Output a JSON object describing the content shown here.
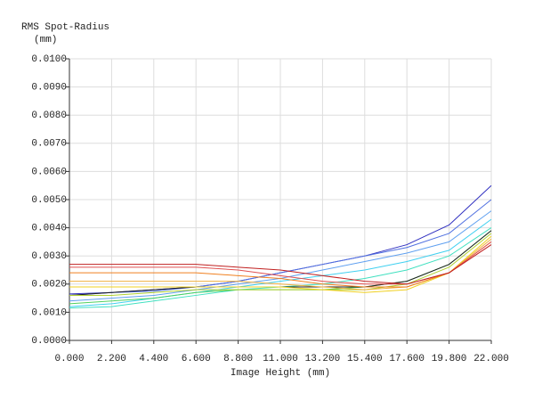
{
  "chart_data": {
    "type": "line",
    "y_label_lines": [
      "RMS Spot-Radius",
      "(mm)"
    ],
    "x_label": "Image Height (mm)",
    "x": [
      0,
      2.2,
      4.4,
      6.6,
      8.8,
      11,
      13.2,
      15.4,
      17.6,
      19.8,
      22
    ],
    "series": [
      {
        "color": "#3030c0",
        "values": [
          0.00165,
          0.0017,
          0.0018,
          0.0019,
          0.0021,
          0.0024,
          0.0027,
          0.003,
          0.0034,
          0.0041,
          0.0055
        ]
      },
      {
        "color": "#5070e0",
        "values": [
          0.0016,
          0.0017,
          0.00175,
          0.0019,
          0.0021,
          0.0024,
          0.0027,
          0.003,
          0.0033,
          0.0038,
          0.005
        ]
      },
      {
        "color": "#60a0f0",
        "values": [
          0.0014,
          0.0015,
          0.0016,
          0.0018,
          0.002,
          0.0022,
          0.0025,
          0.0028,
          0.0031,
          0.0035,
          0.0046
        ]
      },
      {
        "color": "#40d0f0",
        "values": [
          0.0012,
          0.0013,
          0.0015,
          0.0017,
          0.0019,
          0.0021,
          0.0023,
          0.0025,
          0.0028,
          0.0032,
          0.0043
        ]
      },
      {
        "color": "#40e0c0",
        "values": [
          0.00115,
          0.0012,
          0.0014,
          0.0016,
          0.0018,
          0.0019,
          0.002,
          0.0022,
          0.0025,
          0.003,
          0.004
        ]
      },
      {
        "color": "#50d060",
        "values": [
          0.0013,
          0.0014,
          0.0015,
          0.0017,
          0.0018,
          0.0018,
          0.0018,
          0.0019,
          0.0021,
          0.0027,
          0.0039
        ]
      },
      {
        "color": "#202020",
        "values": [
          0.0016,
          0.0017,
          0.0018,
          0.0019,
          0.0019,
          0.0019,
          0.0019,
          0.0019,
          0.0021,
          0.0027,
          0.0039
        ]
      },
      {
        "color": "#b0d030",
        "values": [
          0.0016,
          0.0016,
          0.0017,
          0.0018,
          0.0018,
          0.0018,
          0.0018,
          0.0018,
          0.002,
          0.0026,
          0.0038
        ]
      },
      {
        "color": "#f0d020",
        "values": [
          0.0019,
          0.0019,
          0.0019,
          0.0019,
          0.0019,
          0.0019,
          0.0018,
          0.0017,
          0.0018,
          0.0024,
          0.0037
        ]
      },
      {
        "color": "#f0b040",
        "values": [
          0.0021,
          0.0021,
          0.0021,
          0.0021,
          0.0021,
          0.002,
          0.0019,
          0.0018,
          0.0019,
          0.0024,
          0.0036
        ]
      },
      {
        "color": "#f08020",
        "values": [
          0.0024,
          0.0024,
          0.0024,
          0.0024,
          0.0023,
          0.0022,
          0.002,
          0.0019,
          0.0019,
          0.0024,
          0.0035
        ]
      },
      {
        "color": "#e05050",
        "values": [
          0.0026,
          0.0026,
          0.0026,
          0.0026,
          0.0025,
          0.0023,
          0.0021,
          0.002,
          0.002,
          0.0024,
          0.0035
        ]
      },
      {
        "color": "#c02020",
        "values": [
          0.0027,
          0.0027,
          0.0027,
          0.0027,
          0.0026,
          0.0025,
          0.0023,
          0.0021,
          0.002,
          0.0024,
          0.0034
        ]
      }
    ],
    "xlim": [
      0,
      22
    ],
    "xticks": [
      {
        "value": 0,
        "label": "0.000"
      },
      {
        "value": 2.2,
        "label": "2.200"
      },
      {
        "value": 4.4,
        "label": "4.400"
      },
      {
        "value": 6.6,
        "label": "6.600"
      },
      {
        "value": 8.8,
        "label": "8.800"
      },
      {
        "value": 11,
        "label": "11.000"
      },
      {
        "value": 13.2,
        "label": "13.200"
      },
      {
        "value": 15.4,
        "label": "15.400"
      },
      {
        "value": 17.6,
        "label": "17.600"
      },
      {
        "value": 19.8,
        "label": "19.800"
      },
      {
        "value": 22,
        "label": "22.000"
      }
    ],
    "ylim": [
      0,
      0.01
    ],
    "yticks": [
      {
        "value": 0,
        "label": "0.0000"
      },
      {
        "value": 0.001,
        "label": "0.0010"
      },
      {
        "value": 0.002,
        "label": "0.0020"
      },
      {
        "value": 0.003,
        "label": "0.0030"
      },
      {
        "value": 0.004,
        "label": "0.0040"
      },
      {
        "value": 0.005,
        "label": "0.0050"
      },
      {
        "value": 0.006,
        "label": "0.0060"
      },
      {
        "value": 0.007,
        "label": "0.0070"
      },
      {
        "value": 0.008,
        "label": "0.0080"
      },
      {
        "value": 0.009,
        "label": "0.0090"
      },
      {
        "value": 0.01,
        "label": "0.0100"
      }
    ],
    "grid": true
  }
}
